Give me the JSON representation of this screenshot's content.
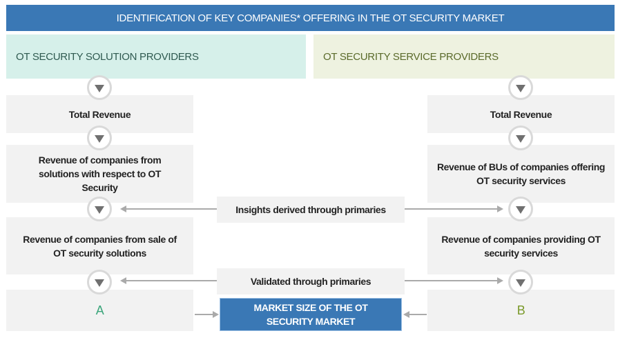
{
  "title": "IDENTIFICATION OF KEY COMPANIES* OFFERING IN THE OT SECURITY MARKET",
  "left": {
    "category": "OT SECURITY SOLUTION PROVIDERS",
    "steps": [
      "Total Revenue",
      "Revenue of companies from solutions with respect to OT Security",
      "Revenue of companies from sale of OT security solutions"
    ],
    "result": "A"
  },
  "right": {
    "category": "OT SECURITY SERVICE PROVIDERS",
    "steps": [
      "Total Revenue",
      "Revenue of BUs of companies offering OT security services",
      "Revenue of companies providing OT security services"
    ],
    "result": "B"
  },
  "middle": {
    "insights": "Insights derived through primaries",
    "validated": "Validated through primaries",
    "market_size": "MARKET SIZE OF THE OT SECURITY MARKET"
  },
  "colors": {
    "header": "#3a78b5",
    "left_category_bg": "#d6f0ea",
    "right_category_bg": "#eef2e0",
    "letter_a": "#3aa57a",
    "letter_b": "#7a9a2a"
  }
}
